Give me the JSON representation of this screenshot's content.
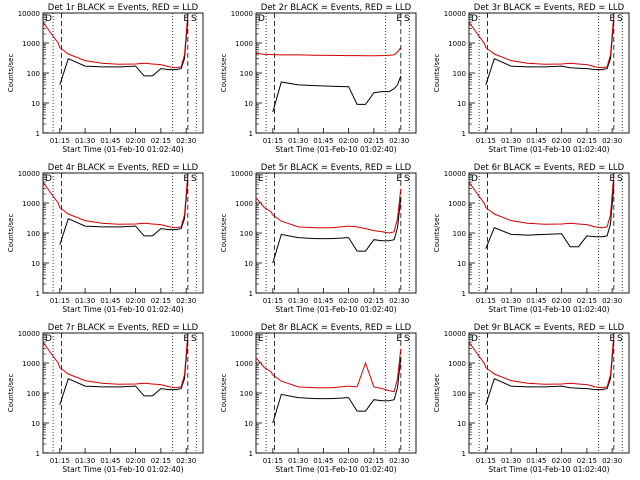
{
  "chart_data": {
    "type": "line",
    "scale_y": "log",
    "ylim": [
      1,
      10000
    ],
    "x_range": [
      "01:05",
      "02:40"
    ],
    "grid": false,
    "line_colors": {
      "events": "#000000",
      "lld": "#d00000"
    },
    "x_ticks": [
      "01:15",
      "01:30",
      "01:45",
      "02:00",
      "02:15",
      "02:30"
    ],
    "y_ticks": [
      "1",
      "10",
      "100",
      "1000",
      "10000"
    ],
    "xlabel": "Start Time (01-Feb-10 01:02:40)",
    "ylabel": "Counts/sec",
    "times": [
      "01:05",
      "01:10",
      "01:14",
      "01:15",
      "01:20",
      "01:30",
      "01:40",
      "01:50",
      "02:00",
      "02:05",
      "02:10",
      "02:15",
      "02:20",
      "02:24",
      "02:27",
      "02:29",
      "02:31"
    ],
    "panels": [
      {
        "title": "Det 1r BLACK = Events, RED = LLD",
        "corner_labels": [
          "D",
          "E",
          "S"
        ],
        "lld": [
          5000,
          2000,
          1000,
          700,
          430,
          260,
          210,
          195,
          200,
          210,
          200,
          190,
          160,
          150,
          160,
          400,
          9000
        ],
        "events": [
          null,
          null,
          null,
          40,
          300,
          170,
          160,
          160,
          170,
          80,
          80,
          140,
          130,
          130,
          140,
          300,
          6000
        ],
        "markers": {
          "dotted": [
            "01:11",
            "02:22",
            "02:36"
          ],
          "dashed": [
            "01:16",
            "02:31"
          ]
        }
      },
      {
        "title": "Det 2r BLACK = Events, RED = LLD",
        "corner_labels": [
          "D",
          "E",
          "S"
        ],
        "lld": [
          450,
          420,
          410,
          410,
          400,
          400,
          390,
          385,
          380,
          380,
          375,
          375,
          380,
          390,
          400,
          500,
          700
        ],
        "events": [
          null,
          null,
          null,
          5,
          50,
          40,
          38,
          36,
          35,
          9,
          9,
          22,
          24,
          24,
          30,
          40,
          80
        ],
        "markers": {
          "dotted": [
            "01:11",
            "02:22",
            "02:36"
          ],
          "dashed": [
            "01:16",
            "02:31"
          ]
        }
      },
      {
        "title": "Det 3r BLACK = Events, RED = LLD",
        "corner_labels": [
          "D",
          "E",
          "S"
        ],
        "lld": [
          5000,
          2000,
          1000,
          700,
          430,
          260,
          210,
          195,
          200,
          210,
          200,
          190,
          160,
          150,
          160,
          400,
          9000
        ],
        "events": [
          null,
          null,
          null,
          40,
          300,
          170,
          160,
          160,
          170,
          150,
          145,
          140,
          130,
          130,
          140,
          300,
          6000
        ],
        "markers": {
          "dotted": [
            "01:11",
            "02:22",
            "02:36"
          ],
          "dashed": [
            "01:16",
            "02:31"
          ]
        }
      },
      {
        "title": "Det 4r BLACK = Events, RED = LLD",
        "corner_labels": [
          "D",
          "E",
          "S"
        ],
        "lld": [
          5000,
          2000,
          1000,
          700,
          430,
          260,
          210,
          195,
          200,
          210,
          200,
          190,
          160,
          150,
          160,
          400,
          9000
        ],
        "events": [
          null,
          null,
          null,
          40,
          300,
          170,
          160,
          160,
          170,
          80,
          80,
          140,
          130,
          130,
          140,
          300,
          6000
        ],
        "markers": {
          "dotted": [
            "01:11",
            "02:22",
            "02:36"
          ],
          "dashed": [
            "01:16",
            "02:31"
          ]
        }
      },
      {
        "title": "Det 5r BLACK = Events, RED = LLD",
        "corner_labels": [
          "E",
          "E",
          "S"
        ],
        "lld": [
          1500,
          700,
          500,
          400,
          250,
          160,
          150,
          150,
          170,
          160,
          140,
          120,
          110,
          100,
          110,
          300,
          3000
        ],
        "events": [
          null,
          null,
          null,
          10,
          90,
          70,
          65,
          65,
          70,
          25,
          25,
          60,
          55,
          55,
          60,
          150,
          1500
        ],
        "markers": {
          "dotted": [
            "01:11",
            "02:22",
            "02:36"
          ],
          "dashed": [
            "01:16",
            "02:31"
          ]
        }
      },
      {
        "title": "Det 6r BLACK = Events, RED = LLD",
        "corner_labels": [
          "D",
          "E",
          "S"
        ],
        "lld": [
          5000,
          2000,
          1000,
          700,
          430,
          260,
          210,
          195,
          200,
          210,
          200,
          190,
          160,
          150,
          160,
          400,
          9000
        ],
        "events": [
          null,
          null,
          null,
          30,
          150,
          90,
          85,
          90,
          95,
          35,
          35,
          80,
          75,
          75,
          80,
          200,
          4000
        ],
        "markers": {
          "dotted": [
            "01:11",
            "02:22",
            "02:36"
          ],
          "dashed": [
            "01:16",
            "02:31"
          ]
        }
      },
      {
        "title": "Det 7r BLACK = Events, RED = LLD",
        "corner_labels": [
          "D",
          "E",
          "S"
        ],
        "lld": [
          5000,
          2000,
          1000,
          700,
          430,
          260,
          210,
          195,
          200,
          210,
          200,
          190,
          160,
          150,
          160,
          400,
          9000
        ],
        "events": [
          null,
          null,
          null,
          40,
          300,
          170,
          160,
          160,
          170,
          80,
          80,
          140,
          130,
          130,
          140,
          300,
          6000
        ],
        "markers": {
          "dotted": [
            "01:11",
            "02:22",
            "02:36"
          ],
          "dashed": [
            "01:16",
            "02:31"
          ]
        }
      },
      {
        "title": "Det 8r BLACK = Events, RED = LLD",
        "corner_labels": [
          "E",
          "E",
          "S"
        ],
        "lld": [
          1500,
          700,
          500,
          400,
          250,
          160,
          150,
          150,
          170,
          160,
          1000,
          160,
          140,
          120,
          110,
          300,
          3000
        ],
        "events": [
          null,
          null,
          null,
          10,
          90,
          70,
          65,
          65,
          70,
          25,
          25,
          60,
          55,
          55,
          60,
          150,
          1500
        ],
        "markers": {
          "dotted": [
            "01:11",
            "02:22",
            "02:36"
          ],
          "dashed": [
            "01:16",
            "02:31"
          ]
        }
      },
      {
        "title": "Det 9r BLACK = Events, RED = LLD",
        "corner_labels": [
          "D",
          "E",
          "S"
        ],
        "lld": [
          5000,
          2000,
          1000,
          700,
          430,
          260,
          210,
          195,
          200,
          210,
          200,
          190,
          160,
          150,
          160,
          400,
          9000
        ],
        "events": [
          null,
          null,
          null,
          40,
          300,
          170,
          160,
          160,
          170,
          150,
          145,
          140,
          130,
          130,
          140,
          300,
          6000
        ],
        "markers": {
          "dotted": [
            "01:11",
            "02:22",
            "02:36"
          ],
          "dashed": [
            "01:16",
            "02:31"
          ]
        }
      }
    ]
  }
}
